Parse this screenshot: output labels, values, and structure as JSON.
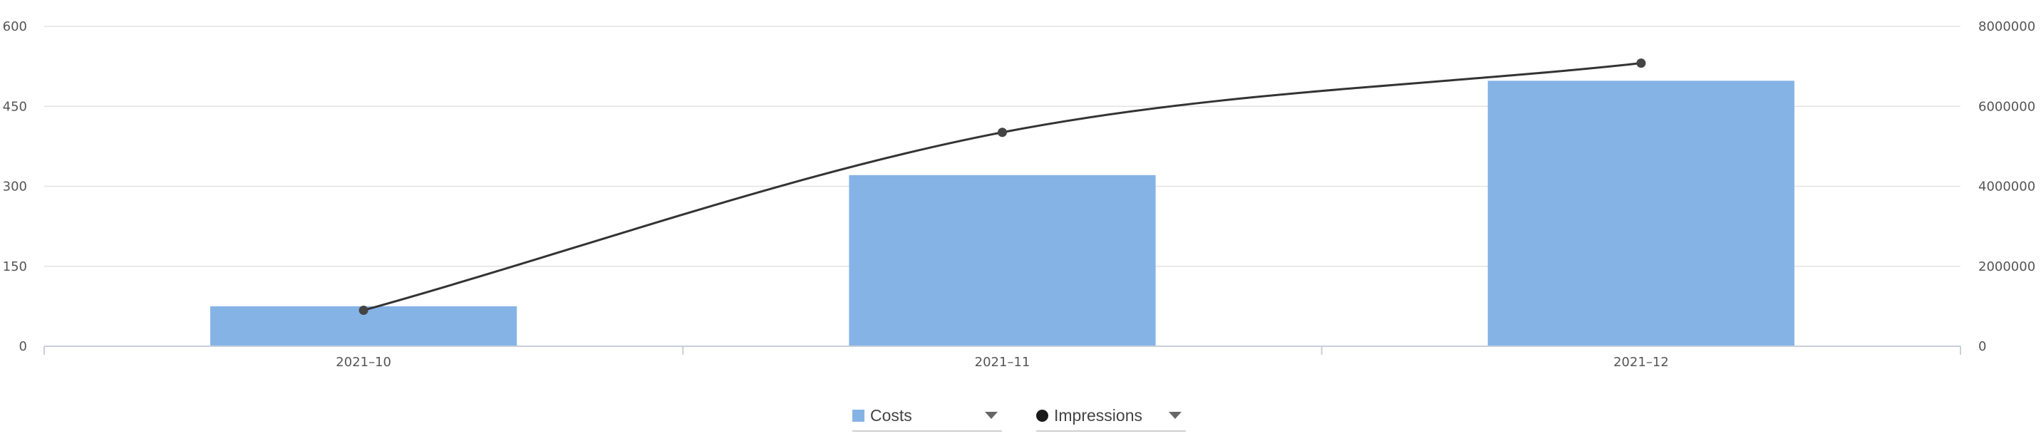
{
  "chart_data": {
    "type": "bar",
    "categories": [
      "2021–10",
      "2021–11",
      "2021–12"
    ],
    "series": [
      {
        "name": "Costs",
        "type": "bar",
        "axis": "left",
        "color": "#86b3e6",
        "values": [
          75,
          321,
          498
        ]
      },
      {
        "name": "Impressions",
        "type": "line",
        "axis": "right",
        "color": "#333333",
        "values": [
          900000,
          5350000,
          7080000
        ]
      }
    ],
    "y_left": {
      "ylim": [
        0,
        600
      ],
      "ticks": [
        "0",
        "150",
        "300",
        "450",
        "600"
      ]
    },
    "y_right": {
      "ylim": [
        0,
        8000000
      ],
      "ticks": [
        "0",
        "2000000",
        "4000000",
        "6000000",
        "8000000"
      ]
    },
    "grid": true,
    "legend_position": "bottom-center"
  },
  "legend": [
    {
      "label": "Costs",
      "marker": "square",
      "color": "#86b3e6"
    },
    {
      "label": "Impressions",
      "marker": "dot",
      "color": "#1a1a1a"
    }
  ]
}
